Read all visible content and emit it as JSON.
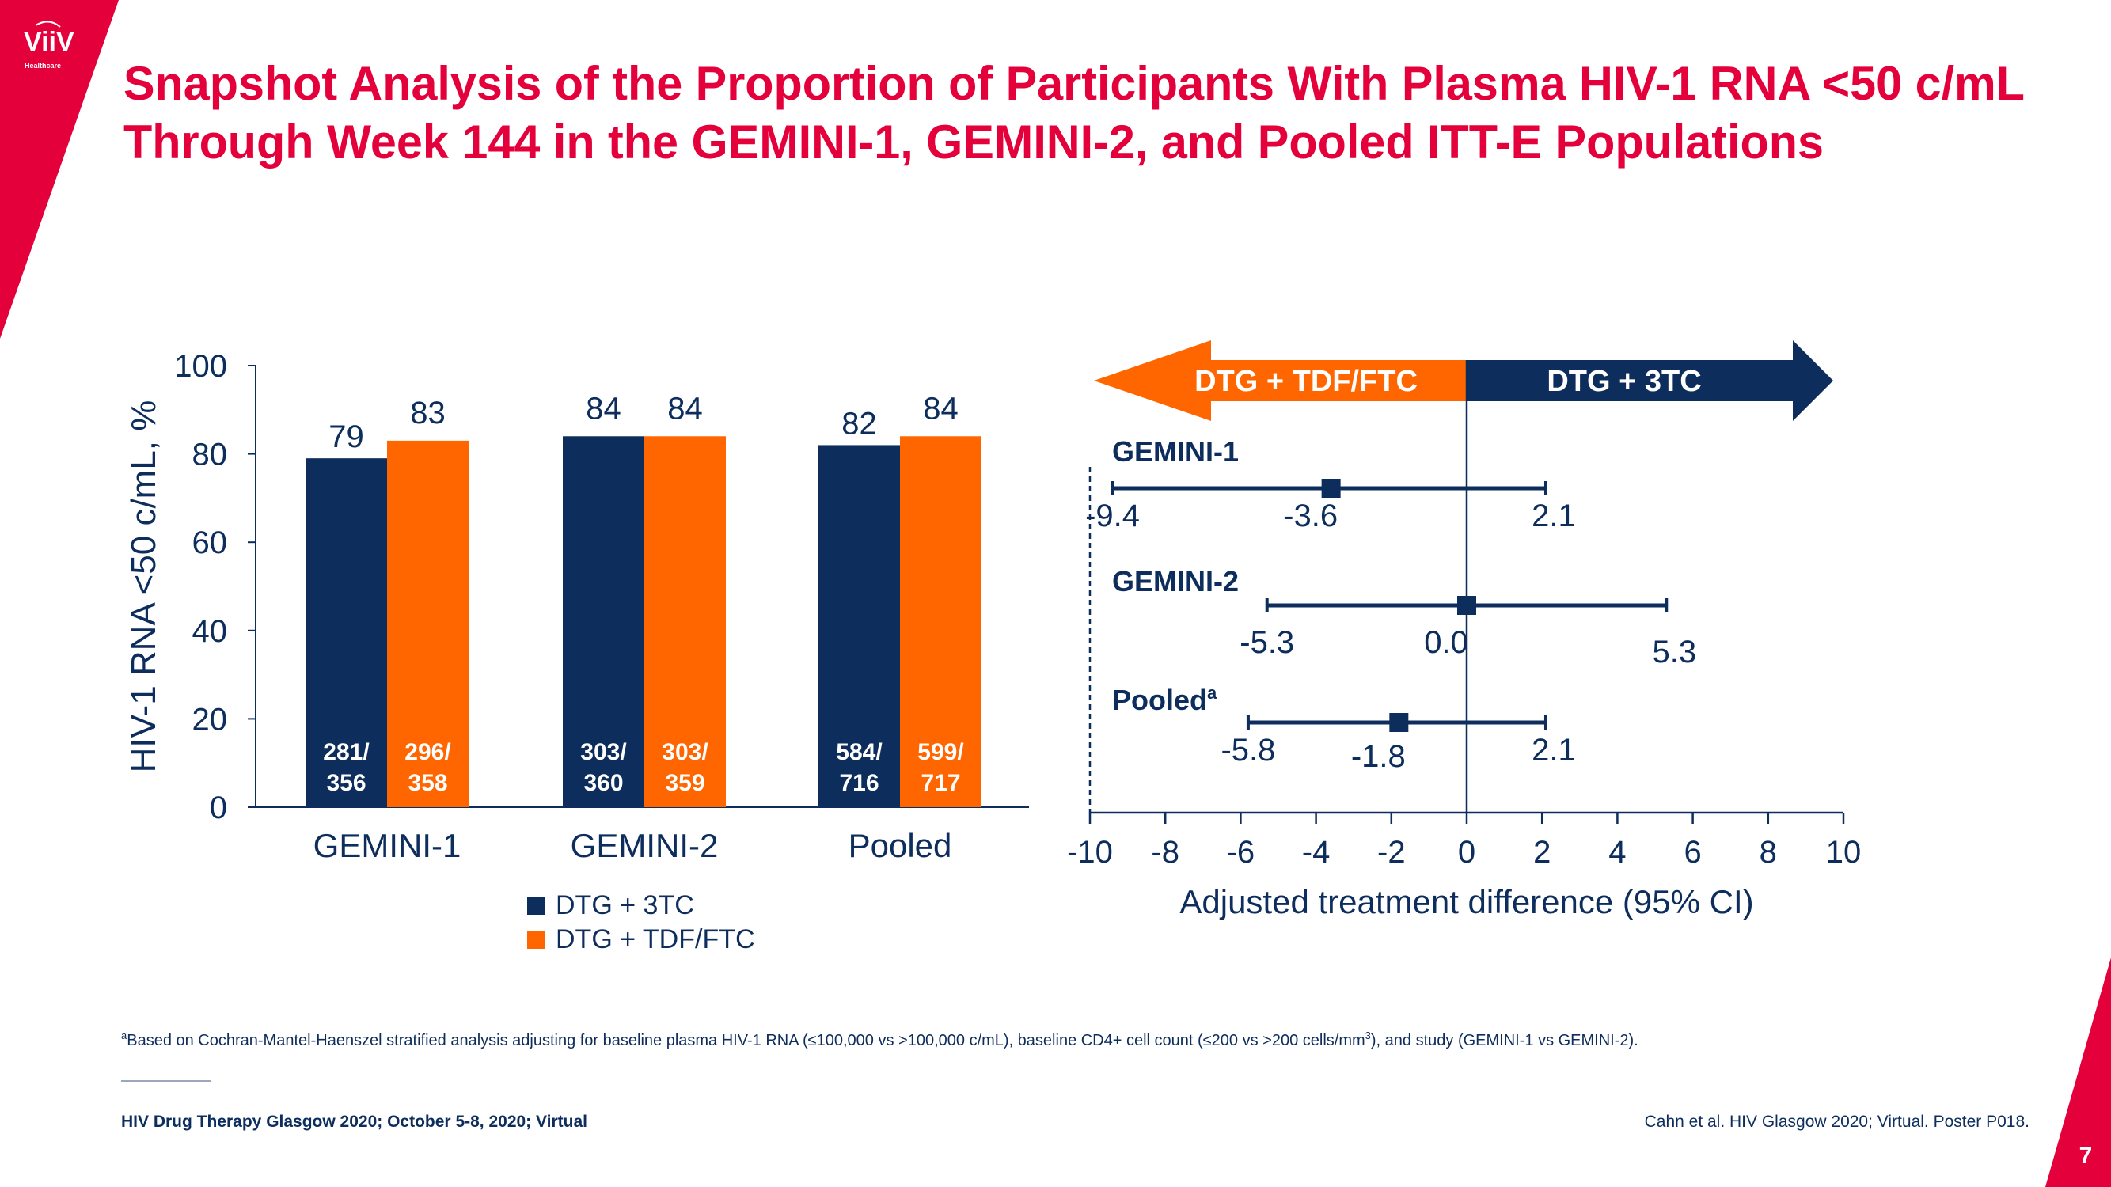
{
  "brand": {
    "logo_text": "ViiV",
    "logo_subtext": "Healthcare",
    "color_red": "#e4003b"
  },
  "title": {
    "line1": "Snapshot Analysis of the Proportion of Participants With Plasma HIV-1 RNA <50 c/mL",
    "line2": "Through Week 144 in the GEMINI-1, GEMINI-2, and Pooled ITT-E Populations"
  },
  "chart_data": [
    {
      "type": "bar",
      "ylabel": "HIV-1 RNA <50 c/mL, %",
      "ylim": [
        0,
        100
      ],
      "yticks": [
        "0",
        "20",
        "40",
        "60",
        "80",
        "100"
      ],
      "categories": [
        "GEMINI-1",
        "GEMINI-2",
        "Pooled"
      ],
      "legend_placement": "bottom",
      "series": [
        {
          "name": "DTG + 3TC",
          "color": "#0d2d5c",
          "values": [
            79,
            84,
            82
          ],
          "counts": [
            [
              "281/",
              "356"
            ],
            [
              "303/",
              "360"
            ],
            [
              "584/",
              "716"
            ]
          ]
        },
        {
          "name": "DTG + TDF/FTC",
          "color": "#ff6600",
          "values": [
            83,
            84,
            84
          ],
          "counts": [
            [
              "296/",
              "358"
            ],
            [
              "303/",
              "359"
            ],
            [
              "599/",
              "717"
            ]
          ]
        }
      ]
    },
    {
      "type": "forest",
      "xlabel": "Adjusted treatment difference (95% CI)",
      "xlim": [
        -10,
        10
      ],
      "xticks": [
        "-10",
        "-8",
        "-6",
        "-4",
        "-2",
        "0",
        "2",
        "4",
        "6",
        "8",
        "10"
      ],
      "favor_left": {
        "label": "DTG + TDF/FTC",
        "color": "#ff6600"
      },
      "favor_right": {
        "label": "DTG + 3TC",
        "color": "#0d2d5c"
      },
      "rows": [
        {
          "label": "GEMINI-1",
          "sup": "",
          "estimate": -3.6,
          "lower": -9.4,
          "upper": 2.1,
          "estimate_label": "-3.6",
          "lower_label": "-9.4",
          "upper_label": "2.1"
        },
        {
          "label": "GEMINI-2",
          "sup": "",
          "estimate": 0.0,
          "lower": -5.3,
          "upper": 5.3,
          "estimate_label": "0.0",
          "lower_label": "-5.3",
          "upper_label": "5.3"
        },
        {
          "label": "Pooled",
          "sup": "a",
          "estimate": -1.8,
          "lower": -5.8,
          "upper": 2.1,
          "estimate_label": "-1.8",
          "lower_label": "-5.8",
          "upper_label": "2.1"
        }
      ]
    }
  ],
  "footnote": {
    "sup": "a",
    "text1": "Based on Cochran-Mantel-Haenszel stratified analysis adjusting for baseline plasma HIV-1 RNA (≤100,000 vs >100,000 c/mL), baseline CD4+ cell count (≤200 vs >200 cells/mm",
    "sup3": "3",
    "text2": "), and study (GEMINI-1 vs GEMINI-2)."
  },
  "footer": {
    "conference": "HIV Drug Therapy Glasgow 2020; October 5-8, 2020; Virtual",
    "citation": "Cahn et al. HIV Glasgow 2020; Virtual. Poster P018.",
    "page_number": "7"
  }
}
